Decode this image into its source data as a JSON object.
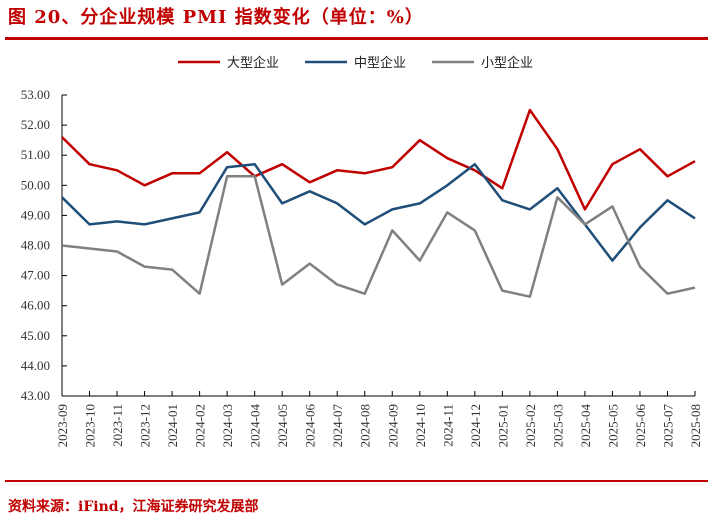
{
  "figure": {
    "title": "图 20、分企业规模 PMI 指数变化（单位：%）",
    "source": "资料来源：iFind，江海证券研究发展部",
    "accent_color": "#c00000"
  },
  "legend": [
    {
      "label": "大型企业",
      "color": "#c00000"
    },
    {
      "label": "中型企业",
      "color": "#1f4e79"
    },
    {
      "label": "小型企业",
      "color": "#808080"
    }
  ],
  "chart_data": {
    "type": "line",
    "title": "分企业规模 PMI 指数变化（单位：%）",
    "xlabel": "",
    "ylabel": "",
    "ylim": [
      43,
      53
    ],
    "yticks": [
      "43.00",
      "44.00",
      "45.00",
      "46.00",
      "47.00",
      "48.00",
      "49.00",
      "50.00",
      "51.00",
      "52.00",
      "53.00"
    ],
    "grid": false,
    "legend_position": "top",
    "categories": [
      "2023-09",
      "2023-10",
      "2023-11",
      "2023-12",
      "2024-01",
      "2024-02",
      "2024-03",
      "2024-04",
      "2024-05",
      "2024-06",
      "2024-07",
      "2024-08",
      "2024-09",
      "2024-10",
      "2024-11",
      "2024-12",
      "2025-01",
      "2025-02",
      "2025-03",
      "2025-04",
      "2025-05",
      "2025-06",
      "2025-07",
      "2025-08"
    ],
    "series": [
      {
        "name": "大型企业",
        "color": "#c00000",
        "values": [
          51.6,
          50.7,
          50.5,
          50.0,
          50.4,
          50.4,
          51.1,
          50.3,
          50.7,
          50.1,
          50.5,
          50.4,
          50.6,
          51.5,
          50.9,
          50.5,
          49.9,
          52.5,
          51.2,
          49.2,
          50.7,
          51.2,
          50.3,
          50.8
        ]
      },
      {
        "name": "中型企业",
        "color": "#1f4e79",
        "values": [
          49.6,
          48.7,
          48.8,
          48.7,
          48.9,
          49.1,
          50.6,
          50.7,
          49.4,
          49.8,
          49.4,
          48.7,
          49.2,
          49.4,
          50.0,
          50.7,
          49.5,
          49.2,
          49.9,
          48.7,
          47.5,
          48.6,
          49.5,
          48.9
        ]
      },
      {
        "name": "小型企业",
        "color": "#808080",
        "values": [
          48.0,
          47.9,
          47.8,
          47.3,
          47.2,
          46.4,
          50.3,
          50.3,
          46.7,
          47.4,
          46.7,
          46.4,
          48.5,
          47.5,
          49.1,
          48.5,
          46.5,
          46.3,
          49.6,
          48.7,
          49.3,
          47.3,
          46.4,
          46.6
        ]
      }
    ]
  }
}
